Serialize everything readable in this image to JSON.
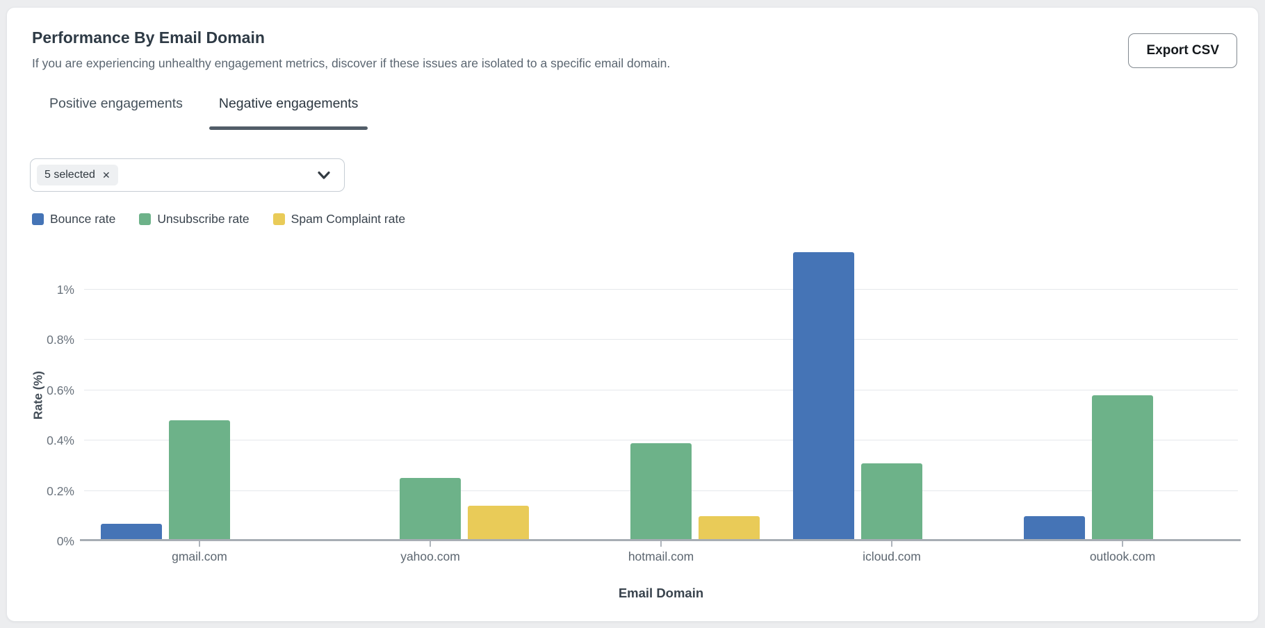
{
  "header": {
    "title": "Performance By Email Domain",
    "subtitle": "If you are experiencing unhealthy engagement metrics, discover if these issues are isolated to a specific email domain.",
    "export_label": "Export CSV"
  },
  "tabs": [
    {
      "label": "Positive engagements",
      "active": false
    },
    {
      "label": "Negative engagements",
      "active": true
    }
  ],
  "filter": {
    "chip_label": "5 selected",
    "close_glyph": "✕",
    "chevron_icon": "chevron-down-icon"
  },
  "colors": {
    "bounce": "#4574B6",
    "unsubscribe": "#6DB289",
    "spam": "#E9CB58",
    "gridline": "#E5E8EB",
    "axis_line": "#A7ADB4",
    "tab_underline": "#525D68"
  },
  "chart_data": {
    "type": "bar",
    "title": "Performance By Email Domain",
    "xlabel": "Email Domain",
    "ylabel": "Rate (%)",
    "categories": [
      "gmail.com",
      "yahoo.com",
      "hotmail.com",
      "icloud.com",
      "outlook.com"
    ],
    "series": [
      {
        "name": "Bounce rate",
        "color": "#4574B6",
        "values": [
          0.07,
          0,
          0,
          1.15,
          0.1
        ]
      },
      {
        "name": "Unsubscribe rate",
        "color": "#6DB289",
        "values": [
          0.48,
          0.25,
          0.39,
          0.31,
          0.58
        ]
      },
      {
        "name": "Spam Complaint rate",
        "color": "#E9CB58",
        "values": [
          0,
          0.14,
          0.1,
          0,
          0
        ]
      }
    ],
    "y_ticks": [
      "0%",
      "0.2%",
      "0.4%",
      "0.6%",
      "0.8%",
      "1%"
    ],
    "ylim": [
      0,
      1.24
    ],
    "grid": true,
    "legend_position": "top-left"
  }
}
